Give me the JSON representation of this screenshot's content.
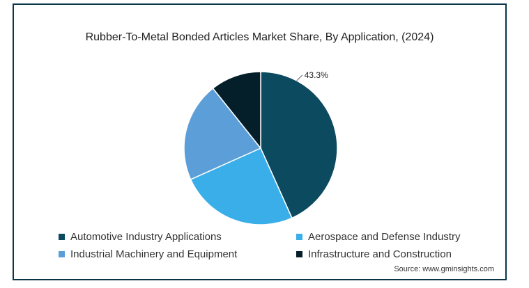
{
  "chart_data": {
    "type": "pie",
    "title": "Rubber-To-Metal Bonded Articles Market Share, By Application,  (2024)",
    "slices": [
      {
        "label": "Automotive Industry Applications",
        "value": 43.3,
        "color": "#0c4a60",
        "show_label": true,
        "value_label": "43.3%"
      },
      {
        "label": "Aerospace and Defense Industry",
        "value": 25.0,
        "color": "#3aaee8",
        "show_label": false
      },
      {
        "label": "Industrial Machinery and Equipment",
        "value": 21.0,
        "color": "#5c9ed8",
        "show_label": false
      },
      {
        "label": "Infrastructure and Construction",
        "value": 10.7,
        "color": "#041e2a",
        "show_label": false
      }
    ],
    "legend_placement": "bottom"
  },
  "source": "Source: www.gminsights.com"
}
